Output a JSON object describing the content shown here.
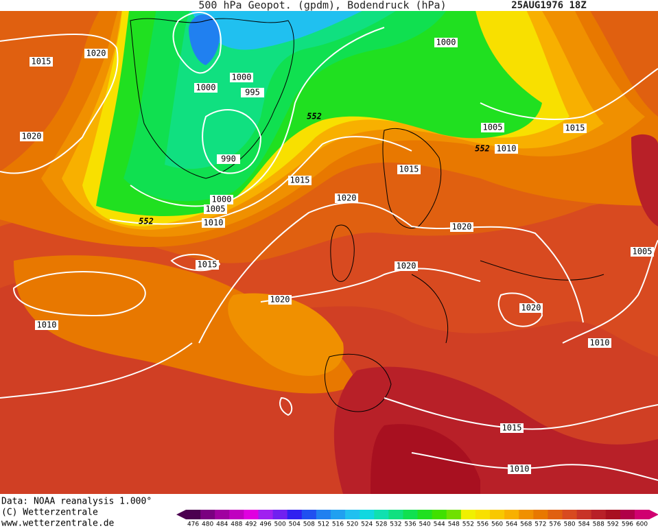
{
  "header": {
    "title": "500 hPa Geopot. (gpdm), Bodendruck (hPa)",
    "date": "25AUG1976 18Z"
  },
  "isobar_labels": [
    1015,
    1020,
    1000,
    1000,
    995,
    1000,
    990,
    552,
    1005,
    1015,
    1020,
    552,
    1010,
    1015,
    1015,
    1020,
    1000,
    1005,
    552,
    1010,
    1020,
    1015,
    1020,
    1005,
    1020,
    1020,
    1010,
    1010,
    1015,
    1010
  ],
  "footer": {
    "source": "Data: NOAA reanalysis 1.000°",
    "copyright": "(C) Wetterzentrale",
    "url": "www.wetterzentrale.de"
  },
  "colorbar": {
    "ticks": [
      476,
      480,
      484,
      488,
      492,
      496,
      500,
      504,
      508,
      512,
      516,
      520,
      524,
      528,
      532,
      536,
      540,
      544,
      548,
      552,
      556,
      560,
      564,
      568,
      572,
      576,
      580,
      584,
      588,
      592,
      596,
      600
    ],
    "colors": [
      "#4b0050",
      "#7a0080",
      "#a000a0",
      "#c000c0",
      "#e000e0",
      "#a020f0",
      "#7020f0",
      "#3020f0",
      "#2050f0",
      "#2080f0",
      "#20a0f0",
      "#20c0f0",
      "#10d8e0",
      "#10e0b0",
      "#10e080",
      "#10e050",
      "#20e020",
      "#40e000",
      "#70e000",
      "#f0f000",
      "#f8e000",
      "#f8c800",
      "#f8b000",
      "#f09000",
      "#e87800",
      "#e06010",
      "#d84a20",
      "#c83428",
      "#b82028",
      "#a81020",
      "#b00048",
      "#d00070"
    ]
  }
}
